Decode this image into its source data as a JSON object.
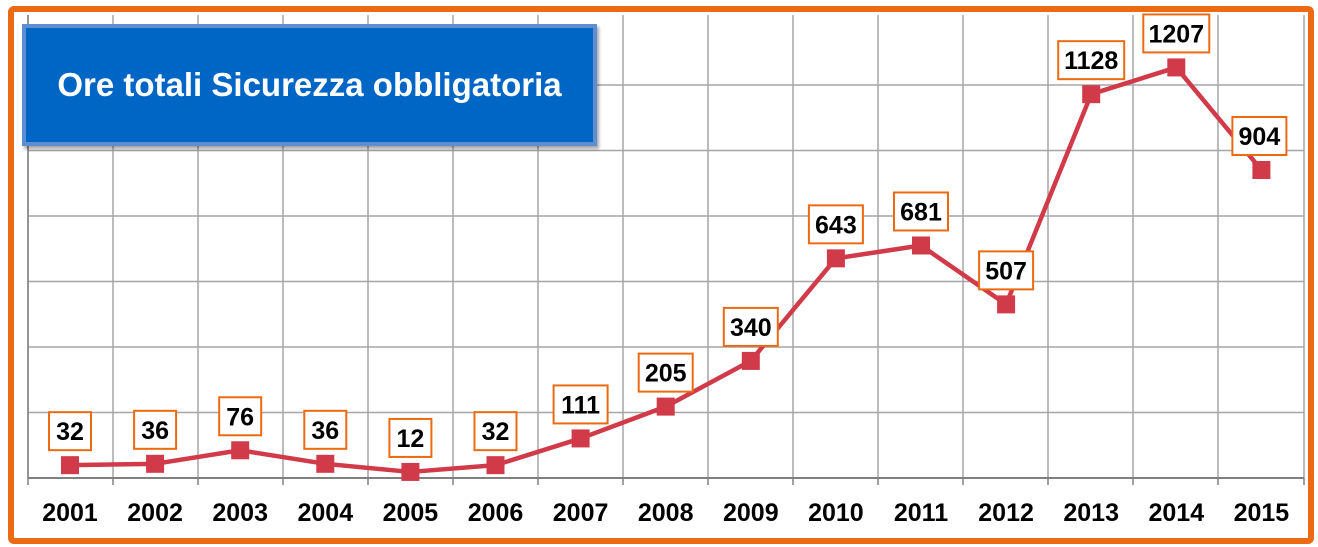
{
  "chart_data": {
    "type": "line",
    "title": "Ore totali Sicurezza obbligatoria",
    "categories": [
      "2001",
      "2002",
      "2003",
      "2004",
      "2005",
      "2006",
      "2007",
      "2008",
      "2009",
      "2010",
      "2011",
      "2012",
      "2013",
      "2014",
      "2015"
    ],
    "series": [
      {
        "values": [
          32,
          36,
          76,
          36,
          12,
          32,
          111,
          205,
          340,
          643,
          681,
          507,
          1128,
          1207,
          904
        ]
      }
    ],
    "data_labels": [
      "32",
      "36",
      "76",
      "36",
      "12",
      "32",
      "111",
      "205",
      "340",
      "643",
      "681",
      "507",
      "1128",
      "1207",
      "904"
    ],
    "ylim": [
      0,
      1400
    ],
    "grid": true,
    "colors": {
      "line": "#d13a48",
      "marker": "#d13a48",
      "frame": "#ec6a12",
      "label_border": "#ec6a12",
      "title_bg": "#0066c6",
      "grid": "#a6a6a6"
    }
  }
}
